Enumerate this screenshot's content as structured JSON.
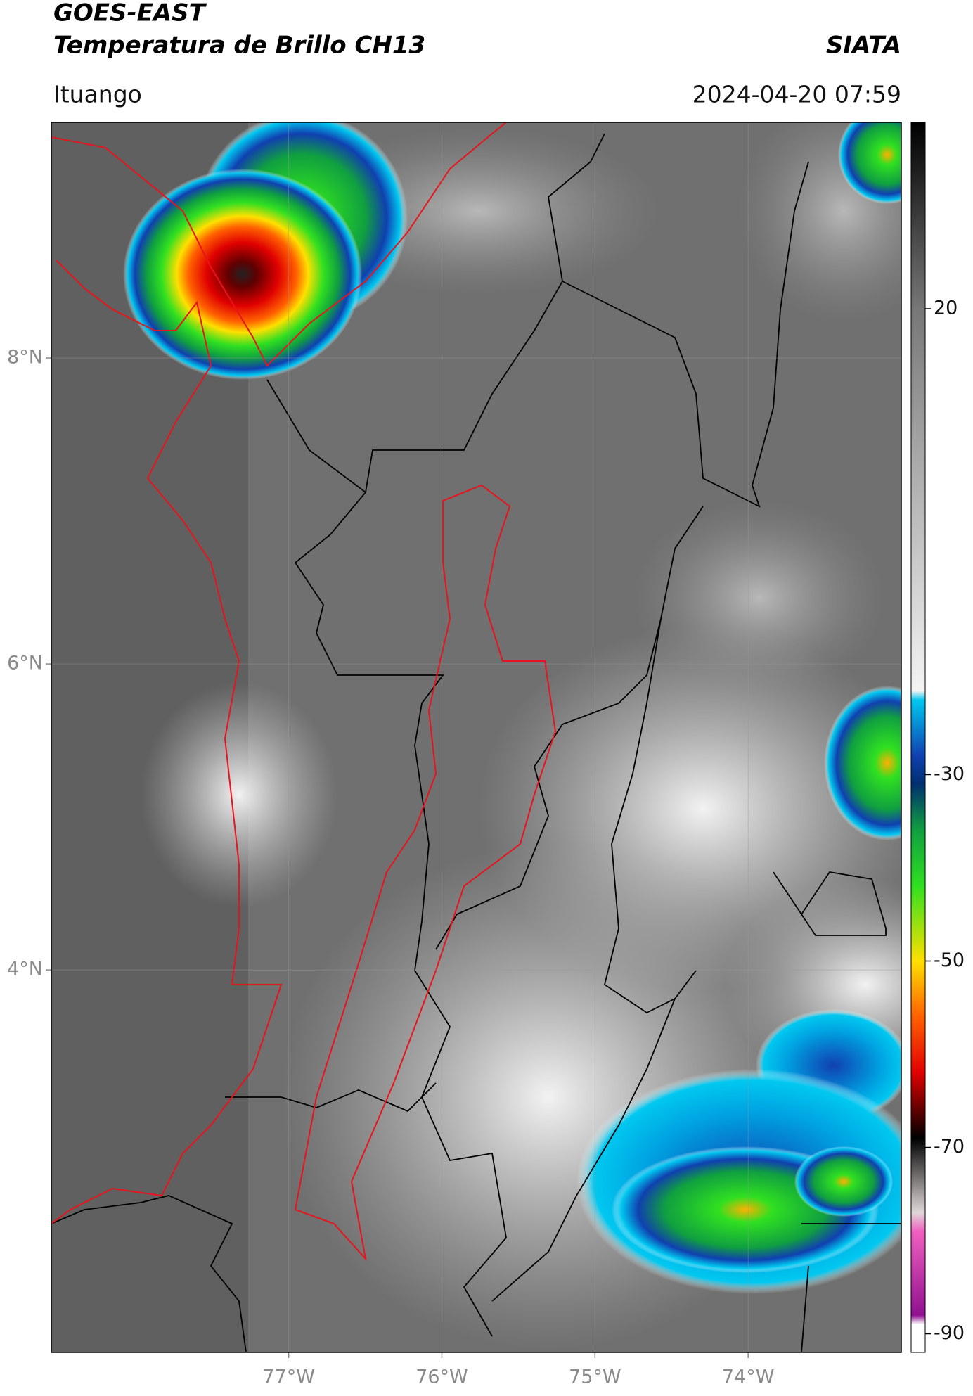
{
  "chart_data": {
    "type": "map",
    "title": "GOES-EAST",
    "subtitle": "Temperatura de Brillo CH13",
    "source": "SIATA",
    "location": "Ituango",
    "timestamp": "2024-04-20 07:59",
    "xlim": [
      -78.55,
      -73
    ],
    "ylim": [
      1.5,
      9.54
    ],
    "xticks": [
      {
        "value": -77,
        "label": "77°W"
      },
      {
        "value": -76,
        "label": "76°W"
      },
      {
        "value": -75,
        "label": "75°W"
      },
      {
        "value": -74,
        "label": "74°W"
      }
    ],
    "yticks": [
      {
        "value": 8,
        "label": "8°N"
      },
      {
        "value": 6,
        "label": "6°N"
      },
      {
        "value": 4,
        "label": "4°N"
      }
    ],
    "grid": true,
    "colorbar": {
      "lim": [
        -92,
        40
      ],
      "ticks": [
        20,
        -30,
        -50,
        -70,
        -90
      ],
      "colormap": [
        {
          "value": 40,
          "color": "#000000"
        },
        {
          "value": 20,
          "color": "#777777"
        },
        {
          "value": -21,
          "color": "#f4f4f4"
        },
        {
          "value": -22,
          "color": "#00c8f0"
        },
        {
          "value": -28,
          "color": "#1040b0"
        },
        {
          "value": -31,
          "color": "#003070"
        },
        {
          "value": -36,
          "color": "#10a040"
        },
        {
          "value": -42,
          "color": "#30e020"
        },
        {
          "value": -50,
          "color": "#ffe000"
        },
        {
          "value": -56,
          "color": "#ff6000"
        },
        {
          "value": -62,
          "color": "#e00000"
        },
        {
          "value": -66,
          "color": "#600000"
        },
        {
          "value": -69,
          "color": "#000000"
        },
        {
          "value": -77,
          "color": "#e0d8d8"
        },
        {
          "value": -79,
          "color": "#f060c0"
        },
        {
          "value": -88,
          "color": "#901090"
        },
        {
          "value": -89,
          "color": "#ffffff"
        }
      ]
    }
  }
}
